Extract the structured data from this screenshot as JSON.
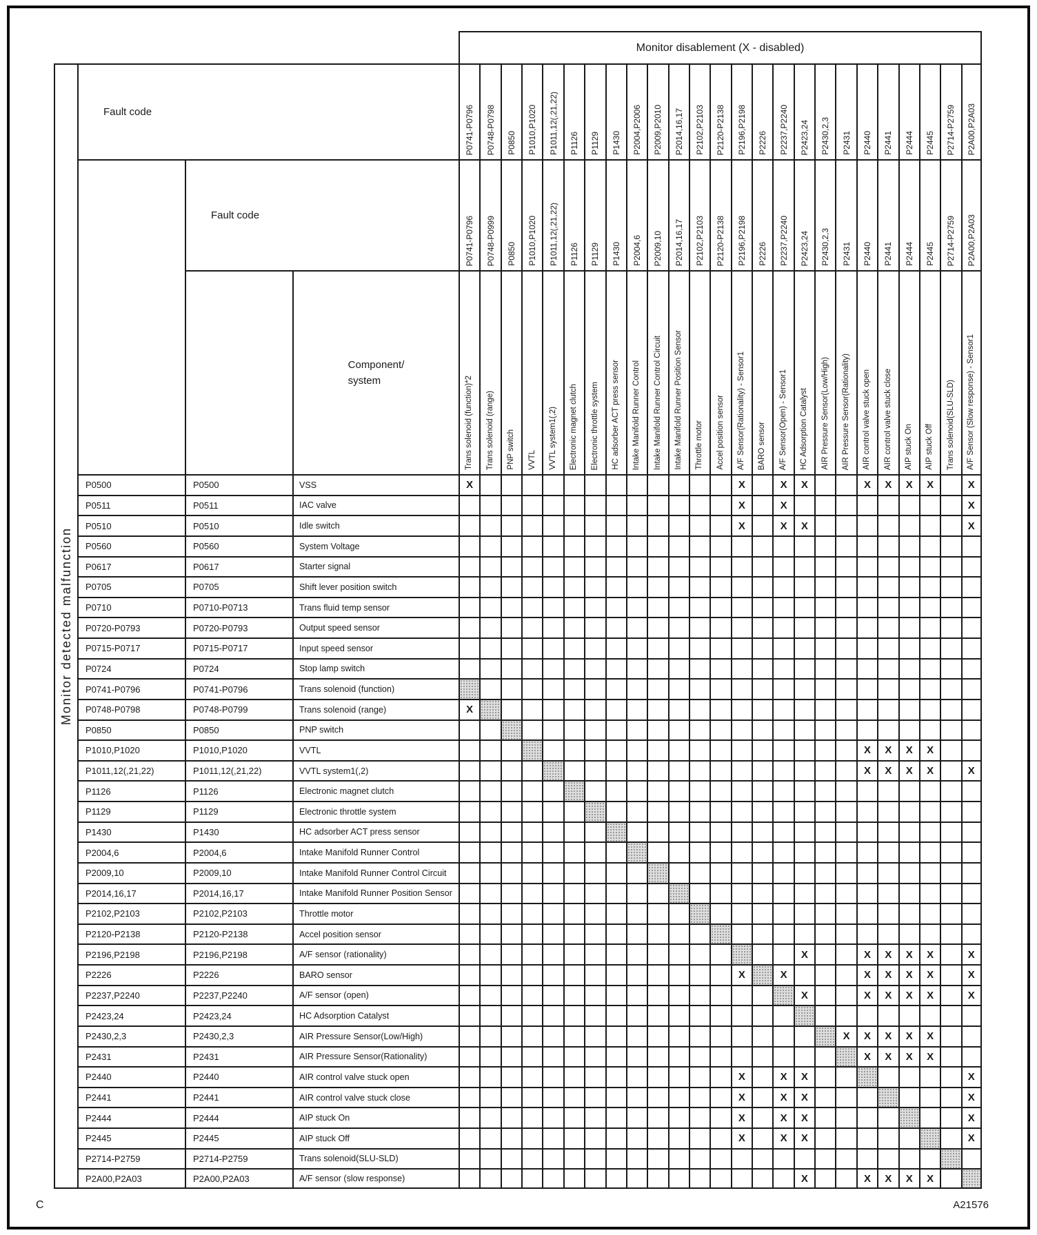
{
  "header": {
    "monitor_disablement": "Monitor disablement (X - disabled)",
    "fault_code_1": "Fault code",
    "fault_code_2": "Fault code",
    "component_line1": "Component/",
    "component_line2": "system",
    "monitor_detected": "Monitor detected malfunction"
  },
  "matrix": {
    "x_symbol": "X",
    "codes_top": [
      "P0741-P0796",
      "P0748-P0798",
      "P0850",
      "P1010,P1020",
      "P1011,12(,21,22)",
      "P1126",
      "P1129",
      "P1430",
      "P2004,P2006",
      "P2009,P2010",
      "P2014,16,17",
      "P2102,P2103",
      "P2120-P2138",
      "P2196,P2198",
      "P2226",
      "P2237,P2240",
      "P2423,24",
      "P2430,2,3",
      "P2431",
      "P2440",
      "P2441",
      "P2444",
      "P2445",
      "P2714-P2759",
      "P2A00,P2A03"
    ],
    "codes_mid": [
      "P0741-P0796",
      "P0748-P0999",
      "P0850",
      "P1010,P1020",
      "P1011,12(,21,22)",
      "P1126",
      "P1129",
      "P1430",
      "P2004,6",
      "P2009,10",
      "P2014,16,17",
      "P2102,P2103",
      "P2120-P2138",
      "P2196,P2198",
      "P2226",
      "P2237,P2240",
      "P2423,24",
      "P2430,2,3",
      "P2431",
      "P2440",
      "P2441",
      "P2444",
      "P2445",
      "P2714-P2759",
      "P2A00,P2A03"
    ],
    "components": [
      "Trans solenoid (function)*2",
      "Trans solenoid (range)",
      "PNP switch",
      "VVTL",
      "VVTL system1(,2)",
      "Electronic magnet clutch",
      "Electronic throttle system",
      "HC adsorber ACT press sensor",
      "Intake Manifold Runner Control",
      "Intake Manifold Runner Control Circuit",
      "Intake Manifold Runner Position Sensor",
      "Throttle motor",
      "Accel position sensor",
      "A/F Sensor(Rationality) - Sensor1",
      "BARO sensor",
      "A/F Sensor(Open) - Sensor1",
      "HC Adsorption Catalyst",
      "AIR Pressure Sensor(Low/High)",
      "AIR Pressure Sensor(Rationality)",
      "AIR control valve stuck open",
      "AIR control valve stuck close",
      "AIP stuck On",
      "AIP stuck Off",
      "Trans solenoid(SLU-SLD)",
      "A/F Sensor (Slow response) - Sensor1"
    ],
    "rows": [
      {
        "code1": "P0500",
        "code2": "P0500",
        "component": "VSS",
        "x": [
          1,
          14,
          16,
          17,
          20,
          21,
          22,
          23,
          25
        ],
        "diag": null
      },
      {
        "code1": "P0511",
        "code2": "P0511",
        "component": "IAC valve",
        "x": [
          14,
          16,
          25
        ],
        "diag": null
      },
      {
        "code1": "P0510",
        "code2": "P0510",
        "component": "Idle switch",
        "x": [
          14,
          16,
          17,
          25
        ],
        "diag": null
      },
      {
        "code1": "P0560",
        "code2": "P0560",
        "component": "System Voltage",
        "x": [],
        "diag": null
      },
      {
        "code1": "P0617",
        "code2": "P0617",
        "component": "Starter signal",
        "x": [],
        "diag": null
      },
      {
        "code1": "P0705",
        "code2": "P0705",
        "component": "Shift lever position switch",
        "x": [],
        "diag": null
      },
      {
        "code1": "P0710",
        "code2": "P0710-P0713",
        "component": "Trans fluid temp sensor",
        "x": [],
        "diag": null
      },
      {
        "code1": "P0720-P0793",
        "code2": "P0720-P0793",
        "component": "Output speed sensor",
        "x": [],
        "diag": null
      },
      {
        "code1": "P0715-P0717",
        "code2": "P0715-P0717",
        "component": "Input speed sensor",
        "x": [],
        "diag": null
      },
      {
        "code1": "P0724",
        "code2": "P0724",
        "component": "Stop lamp switch",
        "x": [],
        "diag": null
      },
      {
        "code1": "P0741-P0796",
        "code2": "P0741-P0796",
        "component": "Trans solenoid (function)",
        "x": [],
        "diag": 1
      },
      {
        "code1": "P0748-P0798",
        "code2": "P0748-P0799",
        "component": "Trans solenoid (range)",
        "x": [
          1
        ],
        "diag": 2
      },
      {
        "code1": "P0850",
        "code2": "P0850",
        "component": "PNP switch",
        "x": [],
        "diag": 3
      },
      {
        "code1": "P1010,P1020",
        "code2": "P1010,P1020",
        "component": "VVTL",
        "x": [
          20,
          21,
          22,
          23
        ],
        "diag": 4
      },
      {
        "code1": "P1011,12(,21,22)",
        "code2": "P1011,12(,21,22)",
        "component": "VVTL system1(,2)",
        "x": [
          20,
          21,
          22,
          23,
          25
        ],
        "diag": 5
      },
      {
        "code1": "P1126",
        "code2": "P1126",
        "component": "Electronic magnet clutch",
        "x": [],
        "diag": 6
      },
      {
        "code1": "P1129",
        "code2": "P1129",
        "component": "Electronic throttle system",
        "x": [],
        "diag": 7
      },
      {
        "code1": "P1430",
        "code2": "P1430",
        "component": "HC adsorber ACT press sensor",
        "x": [],
        "diag": 8
      },
      {
        "code1": "P2004,6",
        "code2": "P2004,6",
        "component": "Intake Manifold Runner Control",
        "x": [],
        "diag": 9
      },
      {
        "code1": "P2009,10",
        "code2": "P2009,10",
        "component": "Intake Manifold Runner Control Circuit",
        "x": [],
        "diag": 10
      },
      {
        "code1": "P2014,16,17",
        "code2": "P2014,16,17",
        "component": "Intake Manifold Runner Position Sensor",
        "x": [],
        "diag": 11
      },
      {
        "code1": "P2102,P2103",
        "code2": "P2102,P2103",
        "component": "Throttle motor",
        "x": [],
        "diag": 12
      },
      {
        "code1": "P2120-P2138",
        "code2": "P2120-P2138",
        "component": "Accel position sensor",
        "x": [],
        "diag": 13
      },
      {
        "code1": "P2196,P2198",
        "code2": "P2196,P2198",
        "component": "A/F sensor (rationality)",
        "x": [
          17,
          20,
          21,
          22,
          23,
          25
        ],
        "diag": 14
      },
      {
        "code1": "P2226",
        "code2": "P2226",
        "component": "BARO sensor",
        "x": [
          14,
          16,
          20,
          21,
          22,
          23,
          25
        ],
        "diag": 15
      },
      {
        "code1": "P2237,P2240",
        "code2": "P2237,P2240",
        "component": "A/F sensor (open)",
        "x": [
          17,
          20,
          21,
          22,
          23,
          25
        ],
        "diag": 16
      },
      {
        "code1": "P2423,24",
        "code2": "P2423,24",
        "component": "HC Adsorption Catalyst",
        "x": [],
        "diag": 17
      },
      {
        "code1": "P2430,2,3",
        "code2": "P2430,2,3",
        "component": "AIR Pressure Sensor(Low/High)",
        "x": [
          19,
          20,
          21,
          22,
          23
        ],
        "diag": 18
      },
      {
        "code1": "P2431",
        "code2": "P2431",
        "component": "AIR Pressure Sensor(Rationality)",
        "x": [
          20,
          21,
          22,
          23
        ],
        "diag": 19
      },
      {
        "code1": "P2440",
        "code2": "P2440",
        "component": "AIR control valve stuck open",
        "x": [
          14,
          16,
          17,
          25
        ],
        "diag": 20
      },
      {
        "code1": "P2441",
        "code2": "P2441",
        "component": "AIR control valve stuck close",
        "x": [
          14,
          16,
          17,
          25
        ],
        "diag": 21
      },
      {
        "code1": "P2444",
        "code2": "P2444",
        "component": "AIP stuck On",
        "x": [
          14,
          16,
          17,
          25
        ],
        "diag": 22
      },
      {
        "code1": "P2445",
        "code2": "P2445",
        "component": "AIP stuck Off",
        "x": [
          14,
          16,
          17,
          25
        ],
        "diag": 23
      },
      {
        "code1": "P2714-P2759",
        "code2": "P2714-P2759",
        "component": "Trans solenoid(SLU-SLD)",
        "x": [],
        "diag": 24
      },
      {
        "code1": "P2A00,P2A03",
        "code2": "P2A00,P2A03",
        "component": "A/F sensor (slow response)",
        "x": [
          17,
          20,
          21,
          22,
          23
        ],
        "diag": 25
      }
    ]
  },
  "footer": {
    "left": "C",
    "right": "A21576"
  },
  "colors": {
    "line": "#1a1a1a",
    "shade": "#dedede",
    "shade_dot": "#8f8f8f"
  }
}
